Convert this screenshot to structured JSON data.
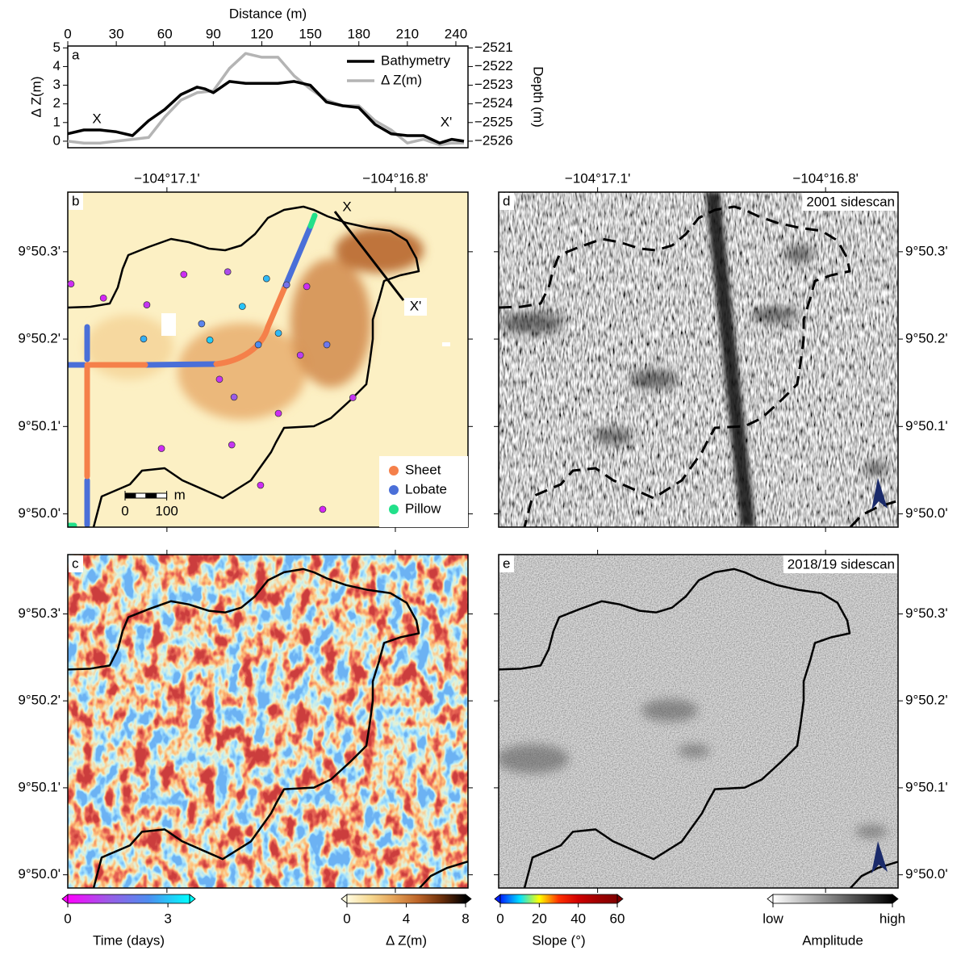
{
  "chart_data": [
    {
      "type": "line",
      "panel": "a",
      "xlabel": "Distance (m)",
      "ylabel": "Δ Z(m)",
      "y2label": "Depth (m)",
      "xlim": [
        0,
        247.5
      ],
      "xticks": [
        0,
        30,
        60,
        90,
        120,
        150,
        180,
        210,
        240
      ],
      "ylim": [
        -0.35,
        5.1
      ],
      "yticks": [
        0,
        1,
        2,
        3,
        4,
        5
      ],
      "y2lim": [
        -2526.35,
        -2520.9
      ],
      "y2ticks": [
        {
          "value": -2521,
          "label": "−2521"
        },
        {
          "value": -2522,
          "label": "−2522"
        },
        {
          "value": -2523,
          "label": "−2523"
        },
        {
          "value": -2524,
          "label": "−2524"
        },
        {
          "value": -2525,
          "label": "−2525"
        },
        {
          "value": -2526,
          "label": "−2526"
        }
      ],
      "series": [
        {
          "name": "Bathymetry",
          "color": "#000000",
          "axis": "y2",
          "x": [
            0,
            10,
            20,
            30,
            40,
            50,
            60,
            70,
            80,
            85,
            90,
            100,
            110,
            120,
            130,
            140,
            150,
            160,
            170,
            180,
            190,
            200,
            210,
            220,
            225,
            230,
            237.5,
            245
          ],
          "values": [
            -2525.6,
            -2525.4,
            -2525.4,
            -2525.5,
            -2525.7,
            -2524.9,
            -2524.3,
            -2523.5,
            -2523.1,
            -2523.2,
            -2523.4,
            -2522.8,
            -2522.9,
            -2522.9,
            -2522.9,
            -2522.8,
            -2523.0,
            -2523.9,
            -2524.1,
            -2524.2,
            -2525.1,
            -2525.6,
            -2525.7,
            -2525.7,
            -2525.9,
            -2526.1,
            -2525.9,
            -2526.0
          ]
        },
        {
          "name": "Δ Z(m)",
          "color": "#b4b4b4",
          "x": [
            0,
            10,
            20,
            30,
            40,
            50,
            60,
            70,
            80,
            90,
            100,
            110,
            120,
            130,
            140,
            150,
            160,
            170,
            180,
            190,
            200,
            210,
            220,
            230,
            237.5,
            245
          ],
          "values": [
            0.0,
            -0.1,
            -0.1,
            0.0,
            0.1,
            0.2,
            1.3,
            2.2,
            2.6,
            2.7,
            3.9,
            4.7,
            4.5,
            4.5,
            3.5,
            2.8,
            2.2,
            1.9,
            1.9,
            1.1,
            0.6,
            -0.1,
            0.1,
            -0.2,
            -0.1,
            -0.1
          ]
        }
      ],
      "legend": "upper right",
      "annotations": [
        "X",
        "X'"
      ]
    },
    {
      "type": "map",
      "panel": "b",
      "tick_labels": [
        "top",
        "left"
      ],
      "xlim": [
        -104.28717,
        -104.27841
      ],
      "ylim": [
        9.83308,
        9.83947
      ],
      "xticks": [
        {
          "value": -104.285,
          "label": "−104°17.1'"
        },
        {
          "value": -104.28,
          "label": "−104°16.8'"
        }
      ],
      "yticks": [
        {
          "value": 9.838333,
          "label": "9°50.3'"
        },
        {
          "value": 9.836667,
          "label": "9°50.2'"
        },
        {
          "value": 9.835,
          "label": "9°50.1'"
        },
        {
          "value": 9.833333,
          "label": "9°50.0'"
        }
      ],
      "series": [
        {
          "name": "Sheet",
          "color": "#f5804a"
        },
        {
          "name": "Lobate",
          "color": "#4a6fd8"
        },
        {
          "name": "Pillow",
          "color": "#22e08a"
        }
      ],
      "points": {
        "x": [
          -104.2871,
          -104.28639,
          -104.28544,
          -104.28551,
          -104.28463,
          -104.28367,
          -104.28282,
          -104.28238,
          -104.28194,
          -104.28335,
          -104.28424,
          -104.28406,
          -104.283,
          -104.28256,
          -104.2815,
          -104.28208,
          -104.28385,
          -104.28353,
          -104.28256,
          -104.28093,
          -104.28512,
          -104.28358,
          -104.28295,
          -104.28159
        ],
        "y": [
          9.83772,
          9.83745,
          9.83732,
          9.83667,
          9.8379,
          9.83795,
          9.83782,
          9.8377,
          9.83767,
          9.83729,
          9.83696,
          9.83665,
          9.83656,
          9.83678,
          9.83656,
          9.83636,
          9.8359,
          9.83556,
          9.83525,
          9.83555,
          9.83458,
          9.83465,
          9.83388,
          9.83342
        ],
        "values": [
          0.6,
          0.5,
          0.7,
          2.8,
          0.6,
          1.0,
          2.9,
          1.8,
          0.6,
          3.0,
          2.2,
          3.1,
          2.4,
          2.9,
          1.9,
          0.8,
          0.7,
          1.2,
          0.6,
          0.7,
          0.6,
          0.7,
          0.6,
          0.5
        ]
      },
      "scale_bar": {
        "ticks": [
          0,
          100
        ],
        "unit": "m"
      },
      "labels": [
        "X",
        "X'"
      ]
    },
    {
      "type": "map",
      "panel": "c",
      "tick_labels": [
        "left"
      ],
      "xlim": [
        -104.28717,
        -104.27841
      ],
      "ylim": [
        9.83308,
        9.83947
      ],
      "xticks": [
        {
          "value": -104.285,
          "label": "−104°17.1'"
        },
        {
          "value": -104.28,
          "label": "−104°16.8'"
        }
      ],
      "yticks": [
        {
          "value": 9.838333,
          "label": "9°50.3'"
        },
        {
          "value": 9.836667,
          "label": "9°50.2'"
        },
        {
          "value": 9.835,
          "label": "9°50.1'"
        },
        {
          "value": 9.833333,
          "label": "9°50.0'"
        }
      ]
    },
    {
      "type": "map",
      "panel": "d",
      "title": "2001 sidescan",
      "tick_labels": [
        "top",
        "right"
      ],
      "xlim": [
        -104.28717,
        -104.27841
      ],
      "ylim": [
        9.83308,
        9.83947
      ],
      "xticks": [
        {
          "value": -104.285,
          "label": "−104°17.1'"
        },
        {
          "value": -104.28,
          "label": "−104°16.8'"
        }
      ],
      "yticks": [
        {
          "value": 9.838333,
          "label": "9°50.3'"
        },
        {
          "value": 9.836667,
          "label": "9°50.2'"
        },
        {
          "value": 9.835,
          "label": "9°50.1'"
        },
        {
          "value": 9.833333,
          "label": "9°50.0'"
        }
      ]
    },
    {
      "type": "map",
      "panel": "e",
      "title": "2018/19 sidescan",
      "tick_labels": [
        "right"
      ],
      "xlim": [
        -104.28717,
        -104.27841
      ],
      "ylim": [
        9.83308,
        9.83947
      ],
      "xticks": [
        {
          "value": -104.285,
          "label": "−104°17.1'"
        },
        {
          "value": -104.28,
          "label": "−104°16.8'"
        }
      ],
      "yticks": [
        {
          "value": 9.838333,
          "label": "9°50.3'"
        },
        {
          "value": 9.836667,
          "label": "9°50.2'"
        },
        {
          "value": 9.835,
          "label": "9°50.1'"
        },
        {
          "value": 9.833333,
          "label": "9°50.0'"
        }
      ]
    },
    {
      "type": "colorbar",
      "label": "Time (days)",
      "xlim": [
        0,
        3.65
      ],
      "xticks": [
        0,
        3
      ],
      "colors": [
        "#ff00ff",
        "#9a5ce6",
        "#4c8ef0",
        "#00ffff"
      ]
    },
    {
      "type": "colorbar",
      "label": "Δ Z(m)",
      "xlim": [
        0,
        8
      ],
      "xticks": [
        0,
        4,
        8
      ],
      "colors": [
        "#fffbe0",
        "#f6d890",
        "#e3a055",
        "#bd6428",
        "#6a2e0a",
        "#000000"
      ]
    },
    {
      "type": "colorbar",
      "label": "Slope (°)",
      "xlim": [
        0,
        60
      ],
      "xticks": [
        0,
        20,
        40,
        60
      ],
      "colors": [
        "#0020ff",
        "#00e0ff",
        "#ffff00",
        "#ff3000",
        "#d00000",
        "#a00000",
        "#800000"
      ]
    },
    {
      "type": "colorbar",
      "label": "Amplitude",
      "xlim": [
        0,
        1
      ],
      "xticks": [
        {
          "value": 0,
          "label": "low"
        },
        {
          "value": 1,
          "label": "high"
        }
      ],
      "colors": [
        "#ffffff",
        "#000000"
      ]
    }
  ]
}
